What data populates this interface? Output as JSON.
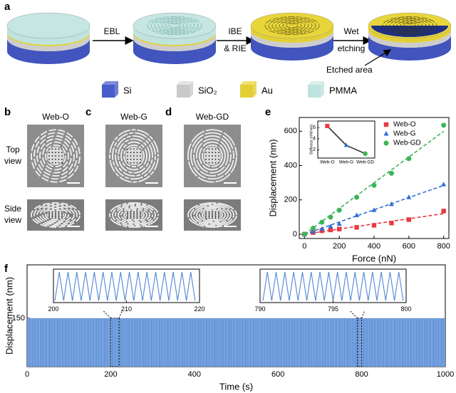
{
  "panels": [
    "a",
    "b",
    "c",
    "d",
    "e",
    "f"
  ],
  "process": {
    "arrows": [
      [
        "EBL"
      ],
      [
        "IBE",
        "& RIE"
      ],
      [
        "Wet",
        "etching"
      ]
    ],
    "annotation": "Etched area",
    "legend": [
      "Si",
      "SiO₂",
      "Au",
      "PMMA"
    ]
  },
  "sem": {
    "titles": [
      "Web-O",
      "Web-G",
      "Web-GD"
    ],
    "rows": [
      [
        "Top",
        "view"
      ],
      [
        "Side",
        "view"
      ]
    ]
  },
  "chart_data": [
    {
      "type": "scatter",
      "xlabel": "Force (nN)",
      "ylabel": "Displacement (nm)",
      "xlim": [
        -30,
        830
      ],
      "ylim": [
        -25,
        680
      ],
      "xticks": [
        0,
        200,
        400,
        600,
        800
      ],
      "yticks": [
        0,
        200,
        400,
        600
      ],
      "legend": "upper right",
      "fit": true,
      "series": [
        {
          "name": "Web-O",
          "color": "#e8393f",
          "marker": "square",
          "x": [
            0,
            50,
            100,
            150,
            200,
            300,
            400,
            500,
            600,
            800
          ],
          "values": [
            0,
            10,
            20,
            25,
            30,
            40,
            52,
            65,
            85,
            135
          ]
        },
        {
          "name": "Web-G",
          "color": "#2f6fd6",
          "marker": "triangle",
          "x": [
            0,
            50,
            100,
            150,
            200,
            300,
            400,
            500,
            600,
            800
          ],
          "values": [
            0,
            15,
            30,
            45,
            60,
            110,
            140,
            175,
            215,
            290
          ]
        },
        {
          "name": "Web-GD",
          "color": "#3cb55a",
          "marker": "circle",
          "x": [
            0,
            50,
            100,
            150,
            200,
            300,
            400,
            500,
            600,
            800
          ],
          "values": [
            0,
            35,
            70,
            100,
            140,
            215,
            285,
            355,
            440,
            635
          ]
        }
      ]
    },
    {
      "type": "line",
      "ylabel": "Stiffness (nN/nm)",
      "categories": [
        "Web-O",
        "Web-G",
        "Web-GD"
      ],
      "values": [
        6.3,
        2.8,
        1.3
      ],
      "colors": [
        "#e8393f",
        "#2f6fd6",
        "#3cb55a"
      ],
      "line_color": "#444444",
      "ylim": [
        0.5,
        7.2
      ],
      "yticks": [
        2,
        4,
        6
      ]
    },
    {
      "type": "area",
      "xlabel": "Time (s)",
      "ylabel": "Displacement (nm)",
      "xlim": [
        0,
        1000
      ],
      "ylim": [
        0,
        315
      ],
      "xticks": [
        0,
        200,
        400,
        600,
        800,
        1000
      ],
      "yticks": [
        150
      ],
      "color": "#4f86d3",
      "x": [
        0,
        1000
      ],
      "values": [
        150,
        150
      ]
    },
    {
      "type": "line",
      "xlim": [
        200,
        220
      ],
      "ylim": [
        -10,
        165
      ],
      "xticks": [
        200,
        210,
        220
      ],
      "color": "#4f86d3",
      "x": [
        200.2,
        200.8,
        201.4,
        202,
        202.6,
        203.2,
        203.8,
        204.4,
        205,
        205.6,
        206.2,
        206.8,
        207.4,
        208,
        208.6,
        209.2,
        209.8,
        210.4,
        211,
        211.6,
        212.2,
        212.8,
        213.4,
        214,
        214.6,
        215.2,
        215.8,
        216.4,
        217,
        217.6,
        218.2,
        218.8,
        219.4
      ],
      "values": [
        0,
        150,
        0,
        150,
        0,
        150,
        0,
        150,
        0,
        150,
        0,
        150,
        0,
        150,
        0,
        150,
        0,
        150,
        0,
        150,
        0,
        150,
        0,
        150,
        0,
        150,
        0,
        150,
        0,
        150,
        0,
        150,
        0
      ]
    },
    {
      "type": "line",
      "xlim": [
        790,
        800
      ],
      "ylim": [
        -10,
        165
      ],
      "xticks": [
        790,
        795,
        800
      ],
      "color": "#4f86d3",
      "x": [
        790.2,
        790.5,
        790.8,
        791.1,
        791.4,
        791.7,
        792,
        792.3,
        792.6,
        792.9,
        793.2,
        793.5,
        793.8,
        794.1,
        794.4,
        794.7,
        795,
        795.3,
        795.6,
        795.9,
        796.2,
        796.5,
        796.8,
        797.1,
        797.4,
        797.7,
        798,
        798.3,
        798.6,
        798.9,
        799.2,
        799.5,
        799.8
      ],
      "values": [
        0,
        150,
        0,
        150,
        0,
        150,
        0,
        150,
        0,
        150,
        0,
        150,
        0,
        150,
        0,
        150,
        0,
        150,
        0,
        150,
        0,
        150,
        0,
        150,
        0,
        150,
        0,
        150,
        0,
        150,
        0,
        150,
        0
      ]
    }
  ]
}
